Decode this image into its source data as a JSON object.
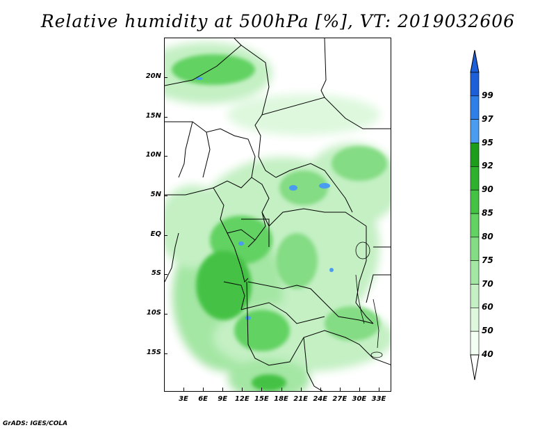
{
  "title": "Relative humidity at 500hPa [%], VT: 2019032606",
  "lat_labels": [
    "20N",
    "15N",
    "10N",
    "5N",
    "EQ",
    "5S",
    "10S",
    "15S"
  ],
  "lon_labels": [
    "3E",
    "6E",
    "9E",
    "12E",
    "15E",
    "18E",
    "21E",
    "24E",
    "27E",
    "30E",
    "33E"
  ],
  "colorbar": {
    "levels": [
      "99",
      "97",
      "95",
      "92",
      "90",
      "85",
      "80",
      "75",
      "70",
      "60",
      "50",
      "40"
    ],
    "colors": [
      "#1c5fd8",
      "#2e7fe8",
      "#4a9cf0",
      "#1c9e1c",
      "#2eb22e",
      "#44c244",
      "#62d262",
      "#84dc84",
      "#a4e6a4",
      "#c4f0c4",
      "#def8de",
      "#f2fff2"
    ],
    "arrow_top_color": "#1c5fd8",
    "arrow_bottom_color": "#ffffff"
  },
  "footer": "GrADS: IGES/COLA"
}
